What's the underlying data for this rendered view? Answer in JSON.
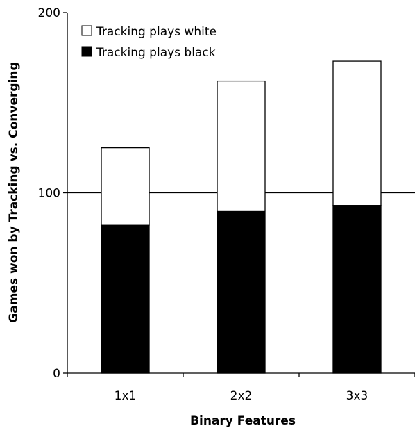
{
  "chart_data": {
    "type": "bar",
    "stacked": true,
    "categories": [
      "1x1",
      "2x2",
      "3x3"
    ],
    "series": [
      {
        "name": "Tracking plays black",
        "values": [
          82,
          90,
          93
        ],
        "color": "#000000"
      },
      {
        "name": "Tracking plays white",
        "values": [
          43,
          72,
          80
        ],
        "color": "#ffffff"
      }
    ],
    "xlabel": "Binary Features",
    "ylabel": "Games won by Tracking vs. Converging",
    "ylim": [
      0,
      200
    ],
    "yticks": [
      "0",
      "100",
      "200"
    ],
    "gridlines": [
      100
    ],
    "legend": {
      "placement": "top-left",
      "items": [
        "Tracking plays white",
        "Tracking plays black"
      ]
    }
  }
}
